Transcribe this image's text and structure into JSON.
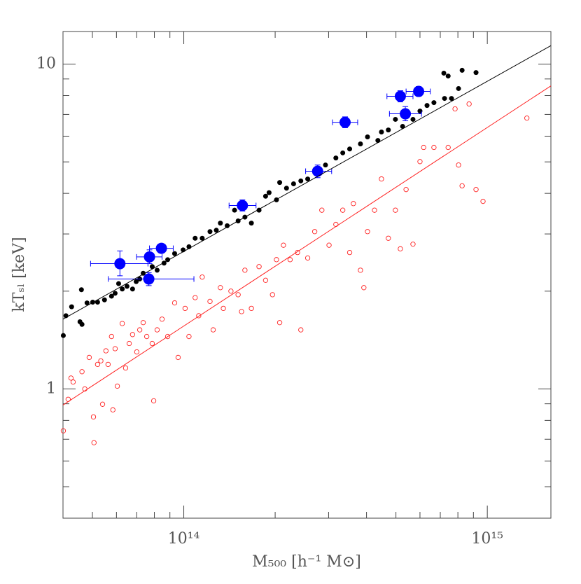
{
  "chart_data": {
    "type": "scatter",
    "xlabel": "M₅₀₀ [h⁻¹ M⊙]",
    "ylabel": "kTₛₗ [keV]",
    "xscale": "log",
    "yscale": "log",
    "xlim": [
      40000000000000.0,
      1620000000000000.0
    ],
    "ylim": [
      0.4,
      12.6
    ],
    "xticks": [
      {
        "value": 100000000000000.0,
        "label": "10¹⁴"
      },
      {
        "value": 1000000000000000.0,
        "label": "10¹⁵"
      }
    ],
    "xminor_ticks": [
      50000000000000.0,
      60000000000000.0,
      70000000000000.0,
      80000000000000.0,
      90000000000000.0,
      200000000000000.0,
      300000000000000.0,
      400000000000000.0,
      500000000000000.0,
      600000000000000.0,
      700000000000000.0,
      800000000000000.0,
      900000000000000.0
    ],
    "yticks": [
      1,
      10
    ],
    "yminor_ticks": [
      0.5,
      0.6,
      0.7,
      0.8,
      0.9,
      2,
      3,
      4,
      5,
      6,
      7,
      8,
      9
    ],
    "series": [
      {
        "style": "filled",
        "color": "#000000",
        "x": [
          40100000000000.0,
          40900000000000.0,
          42700000000000.0,
          45500000000000.0,
          46000000000000.0,
          46200000000000.0,
          48000000000000.0,
          50100000000000.0,
          52000000000000.0,
          54800000000000.0,
          57800000000000.0,
          59400000000000.0,
          61000000000000.0,
          62700000000000.0,
          65000000000000.0,
          67800000000000.0,
          69700000000000.0,
          71600000000000.0,
          73500000000000.0,
          75500000000000.0,
          78700000000000.0,
          81700000000000.0,
          86100000000000.0,
          88500000000000.0,
          93300000000000.0,
          99500000000000.0,
          104000000000000.0,
          109000000000000.0,
          115000000000000.0,
          122000000000000.0,
          128000000000000.0,
          132000000000000.0,
          139000000000000.0,
          147000000000000.0,
          151000000000000.0,
          159000000000000.0,
          167000000000000.0,
          177000000000000.0,
          186000000000000.0,
          191000000000000.0,
          202000000000000.0,
          207000000000000.0,
          218000000000000.0,
          230000000000000.0,
          243000000000000.0,
          256000000000000.0,
          270000000000000.0,
          293000000000000.0,
          317000000000000.0,
          334000000000000.0,
          352000000000000.0,
          382000000000000.0,
          403000000000000.0,
          436000000000000.0,
          448000000000000.0,
          472000000000000.0,
          498000000000000.0,
          526000000000000.0,
          569000000000000.0,
          600000000000000.0,
          633000000000000.0,
          667000000000000.0,
          723000000000000.0,
          743000000000000.0,
          762000000000000.0,
          804000000000000.0,
          826000000000000.0,
          918000000000000.0,
          719000000000000.0
        ],
        "values": [
          1.46,
          1.68,
          1.79,
          1.61,
          2.02,
          1.58,
          1.84,
          1.85,
          1.85,
          1.88,
          1.93,
          1.97,
          2.11,
          2.03,
          2.07,
          2.03,
          2.14,
          2.18,
          2.27,
          2.21,
          2.38,
          2.32,
          2.44,
          2.5,
          2.61,
          2.68,
          2.74,
          2.91,
          2.91,
          3.05,
          3.08,
          3.24,
          3.18,
          3.55,
          3.29,
          3.38,
          3.24,
          3.55,
          3.92,
          4.02,
          3.82,
          4.32,
          4.15,
          4.28,
          4.37,
          4.43,
          4.66,
          4.89,
          5.14,
          5.33,
          5.48,
          5.68,
          5.97,
          5.82,
          6.18,
          6.27,
          6.76,
          6.43,
          6.76,
          7.17,
          7.46,
          7.61,
          7.84,
          9.19,
          7.84,
          8.41,
          9.57,
          9.42,
          9.38
        ]
      },
      {
        "style": "open",
        "color": "#ff2020",
        "x": [
          40100000000000.0,
          41600000000000.0,
          42500000000000.0,
          43200000000000.0,
          46200000000000.0,
          47200000000000.0,
          48800000000000.0,
          50400000000000.0,
          50600000000000.0,
          52000000000000.0,
          53300000000000.0,
          54000000000000.0,
          55400000000000.0,
          56300000000000.0,
          57800000000000.0,
          58400000000000.0,
          59400000000000.0,
          60400000000000.0,
          62700000000000.0,
          64300000000000.0,
          66100000000000.0,
          67800000000000.0,
          70000000000000.0,
          71600000000000.0,
          73500000000000.0,
          75500000000000.0,
          78700000000000.0,
          79600000000000.0,
          81700000000000.0,
          84800000000000.0,
          88500000000000.0,
          93300000000000.0,
          95800000000000.0,
          101000000000000.0,
          104000000000000.0,
          109000000000000.0,
          112000000000000.0,
          115000000000000.0,
          122000000000000.0,
          125000000000000.0,
          132000000000000.0,
          135000000000000.0,
          143000000000000.0,
          151000000000000.0,
          155000000000000.0,
          159000000000000.0,
          167000000000000.0,
          177000000000000.0,
          186000000000000.0,
          196000000000000.0,
          202000000000000.0,
          207000000000000.0,
          213000000000000.0,
          224000000000000.0,
          237000000000000.0,
          243000000000000.0,
          256000000000000.0,
          270000000000000.0,
          285000000000000.0,
          301000000000000.0,
          317000000000000.0,
          334000000000000.0,
          352000000000000.0,
          362000000000000.0,
          382000000000000.0,
          392000000000000.0,
          403000000000000.0,
          425000000000000.0,
          448000000000000.0,
          472000000000000.0,
          498000000000000.0,
          517000000000000.0,
          540000000000000.0,
          569000000000000.0,
          600000000000000.0,
          617000000000000.0,
          667000000000000.0,
          743000000000000.0,
          783000000000000.0,
          804000000000000.0,
          826000000000000.0,
          871000000000000.0,
          918000000000000.0,
          968000000000000.0,
          1350000000000000.0
        ],
        "values": [
          0.743,
          0.929,
          1.08,
          1.05,
          1.13,
          1.0,
          1.25,
          0.82,
          0.683,
          1.19,
          1.22,
          0.897,
          1.31,
          1.19,
          1.45,
          0.862,
          1.33,
          1.02,
          1.59,
          1.16,
          1.38,
          1.47,
          1.3,
          1.52,
          1.6,
          1.45,
          1.38,
          0.919,
          1.52,
          1.64,
          1.45,
          1.84,
          1.25,
          1.77,
          1.45,
          1.91,
          1.68,
          2.21,
          1.86,
          1.52,
          2.05,
          1.77,
          2.0,
          1.95,
          1.73,
          2.32,
          1.77,
          2.38,
          2.16,
          1.95,
          2.5,
          1.6,
          2.77,
          2.5,
          2.63,
          1.52,
          2.53,
          3.05,
          3.55,
          2.77,
          3.21,
          3.55,
          2.63,
          3.72,
          2.32,
          2.05,
          3.05,
          3.55,
          4.43,
          2.91,
          3.55,
          2.7,
          4.11,
          2.79,
          5.01,
          5.54,
          5.54,
          5.54,
          7.28,
          4.89,
          4.22,
          7.54,
          4.11,
          3.78,
          6.82
        ]
      },
      {
        "style": "big",
        "color": "#0000ff",
        "x": [
          61600000000000.0,
          77100000000000.0,
          84400000000000.0,
          76700000000000.0,
          156000000000000.0,
          276000000000000.0,
          340000000000000.0,
          517000000000000.0,
          594000000000000.0,
          537000000000000.0
        ],
        "values": [
          2.43,
          2.55,
          2.71,
          2.18,
          3.67,
          4.68,
          6.62,
          7.96,
          8.24,
          7.03
        ],
        "xmin": [
          49300000000000.0,
          69900000000000.0,
          77100000000000.0,
          56400000000000.0,
          141000000000000.0,
          252000000000000.0,
          309000000000000.0,
          467000000000000.0,
          540000000000000.0,
          476000000000000.0
        ],
        "xmax": [
          76200000000000.0,
          84800000000000.0,
          92300000000000.0,
          108000000000000.0,
          173000000000000.0,
          307000000000000.0,
          374000000000000.0,
          569000000000000.0,
          649000000000000.0,
          607000000000000.0
        ],
        "ymin": [
          2.23,
          2.43,
          2.63,
          2.08,
          3.53,
          4.47,
          6.37,
          7.65,
          7.96,
          6.69
        ],
        "ymax": [
          2.66,
          2.68,
          2.79,
          2.28,
          3.82,
          4.89,
          6.88,
          8.28,
          8.53,
          7.4
        ]
      },
      {
        "style": "line",
        "color": "#000000",
        "x": [
          40000000000000.0,
          1620000000000000.0
        ],
        "values": [
          1.64,
          11.4
        ]
      },
      {
        "style": "line",
        "color": "#ff2020",
        "x": [
          40000000000000.0,
          1620000000000000.0
        ],
        "values": [
          0.892,
          8.57
        ]
      }
    ]
  }
}
